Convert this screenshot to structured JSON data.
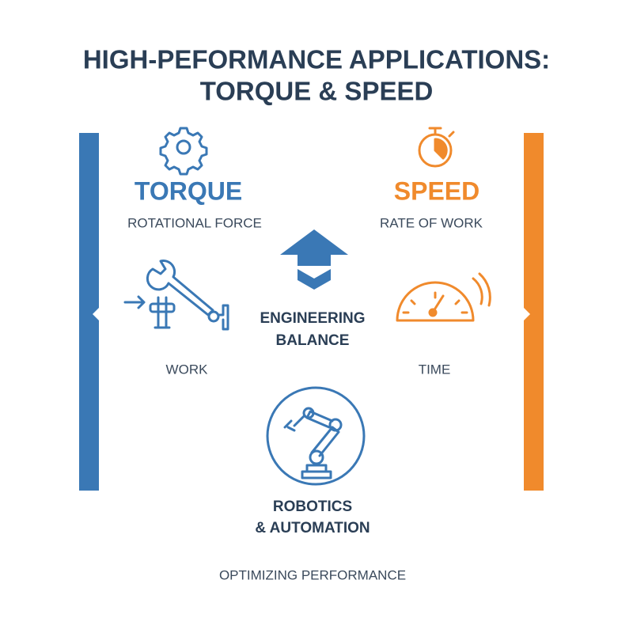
{
  "title": {
    "line1": "HIGH-PEFORMANCE APPLICATIONS:",
    "line2": "TORQUE & SPEED"
  },
  "left": {
    "heading": "TORQUE",
    "subtitle": "ROTATIONAL FORCE",
    "label": "WORK"
  },
  "right": {
    "heading": "SPEED",
    "subtitle": "RATE OF WORK",
    "label": "TIME"
  },
  "center": {
    "lines": [
      "ENGINEERING",
      "BALANCE"
    ]
  },
  "bottom": {
    "lines": [
      "ROBOTICS",
      "& AUTOMATION"
    ]
  },
  "footer": "OPTIMIZING PERFORMANCE"
}
